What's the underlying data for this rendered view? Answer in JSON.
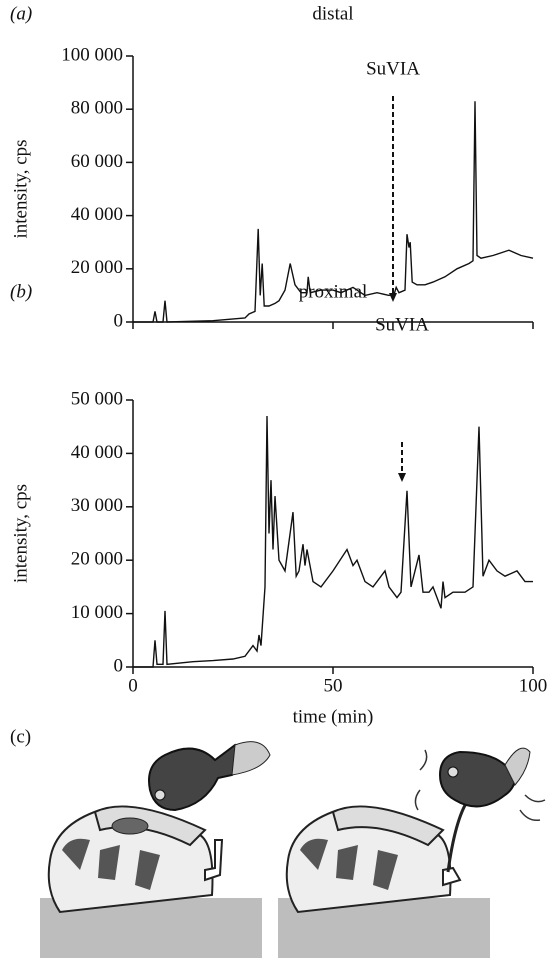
{
  "chart_data": [
    {
      "type": "line",
      "panel_label": "(a)",
      "title": "distal",
      "ylabel": "intensity, cps",
      "annotation": "SuVIA",
      "color": "#111111",
      "x": [
        0,
        5,
        5.5,
        6,
        7.5,
        8,
        8.5,
        20,
        28,
        29,
        30.5,
        31.3,
        31.8,
        32.3,
        32.8,
        34,
        35.5,
        36.5,
        38,
        39.3,
        40.5,
        42,
        43.5,
        43.8,
        44.3,
        47,
        50,
        52,
        55,
        58,
        61,
        64,
        65.3,
        65.8,
        66.5,
        68,
        68.5,
        69,
        69.3,
        69.8,
        71,
        73,
        75,
        78,
        81,
        84,
        85,
        85.5,
        86,
        87,
        90,
        94,
        97,
        100
      ],
      "values": [
        0,
        0,
        4000,
        0,
        0,
        8000,
        0,
        500,
        1500,
        3000,
        4000,
        35000,
        10000,
        22000,
        6000,
        6000,
        7000,
        8000,
        12000,
        22000,
        14000,
        11000,
        11000,
        17000,
        11000,
        12000,
        12000,
        11000,
        13000,
        10000,
        11000,
        10000,
        10500,
        13000,
        11000,
        12000,
        33000,
        28000,
        30000,
        15000,
        14000,
        14000,
        15000,
        17000,
        20000,
        22000,
        23000,
        83000,
        25000,
        24000,
        25000,
        27000,
        25000,
        24000
      ],
      "xlim": [
        0,
        100
      ],
      "xticks": [
        0,
        50,
        100
      ],
      "xtick_labels": false,
      "ylim": [
        0,
        100000
      ],
      "yticks": [
        0,
        {
          "value": 20000,
          "label": "20 000"
        },
        {
          "value": 40000,
          "label": "40 000"
        },
        {
          "value": 60000,
          "label": "60 000"
        },
        {
          "value": 80000,
          "label": "80 000"
        },
        {
          "value": 100000,
          "label": "100 000"
        }
      ]
    },
    {
      "type": "line",
      "panel_label": "(b)",
      "title": "proximal",
      "ylabel": "intensity, cps",
      "xlabel": "time (min)",
      "annotation": "SuVIA",
      "color": "#111111",
      "x": [
        0,
        5,
        5.5,
        6,
        7.5,
        8,
        8.5,
        15,
        20,
        25,
        28,
        30,
        31,
        31.5,
        32,
        33,
        33.5,
        34,
        34.5,
        35,
        35.5,
        36.5,
        38,
        40,
        40.8,
        41.5,
        42.5,
        43,
        43.5,
        45,
        47,
        50,
        53.5,
        55,
        56,
        58,
        60,
        63,
        64,
        66,
        67,
        68.5,
        69.5,
        71.5,
        72.5,
        74,
        75,
        77,
        77.5,
        78,
        80,
        83,
        85,
        86.5,
        87.5,
        88,
        89,
        91,
        93,
        96,
        98,
        100
      ],
      "values": [
        0,
        0,
        5000,
        500,
        500,
        10500,
        500,
        1000,
        1200,
        1500,
        2000,
        4000,
        3000,
        6000,
        4000,
        15000,
        47000,
        25000,
        35000,
        22000,
        32000,
        20000,
        18000,
        29000,
        17000,
        18000,
        23000,
        19000,
        22000,
        16000,
        15000,
        18000,
        22000,
        19000,
        20000,
        16000,
        15000,
        18000,
        15000,
        13000,
        14000,
        33000,
        15000,
        21000,
        14000,
        14000,
        15000,
        11000,
        16000,
        13000,
        14000,
        14000,
        15000,
        45000,
        17000,
        18000,
        20000,
        18000,
        17000,
        18000,
        16000,
        16000
      ],
      "xlim": [
        0,
        100
      ],
      "xticks": [
        0,
        50,
        100
      ],
      "ylim": [
        0,
        50000
      ],
      "yticks": [
        0,
        {
          "value": 10000,
          "label": "10 000"
        },
        {
          "value": 20000,
          "label": "20 000"
        },
        {
          "value": 30000,
          "label": "30 000"
        },
        {
          "value": 40000,
          "label": "40 000"
        },
        {
          "value": 50000,
          "label": "50 000"
        }
      ]
    }
  ],
  "panel_c": {
    "label": "(c)"
  }
}
